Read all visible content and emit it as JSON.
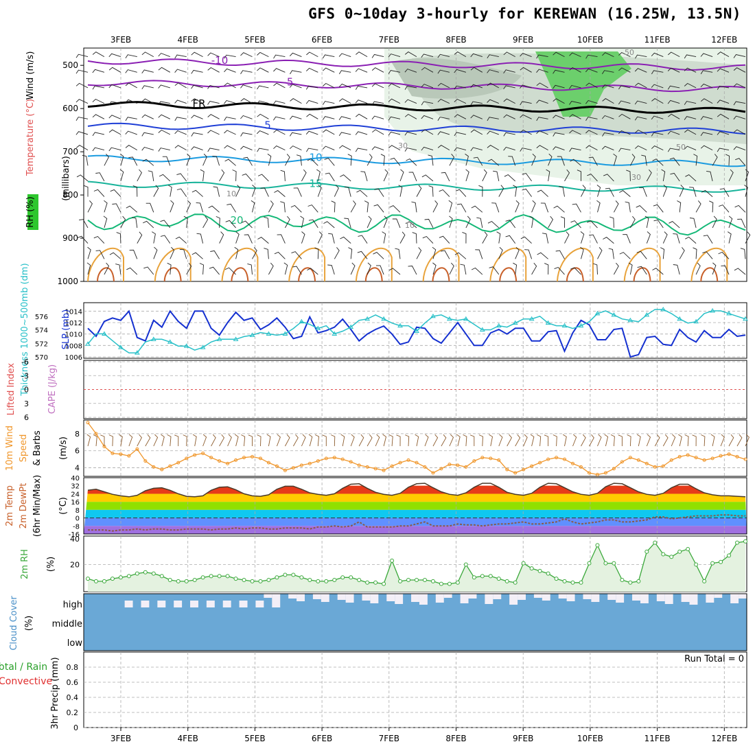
{
  "title": "GFS 0~10day 3-hourly for KEREWAN (16.25W, 13.5N)",
  "colors": {
    "purple": "#8a1fb3",
    "black": "#000000",
    "blue": "#1f3fd6",
    "sky": "#1a9be0",
    "teal": "#17b39a",
    "green": "#14b877",
    "orange": "#e8a23a",
    "darkorange": "#c8602a",
    "slp": "#1430d0",
    "thickness": "#27c0c8",
    "wind10": "#f0962a",
    "barb": "#8b5a2b",
    "rh2m": "#3aa83a",
    "cloud": "#6aa8d6",
    "cloudclear": "#f3eff7",
    "precip_grid": "#999999"
  },
  "chart_data": [
    {
      "type": "line",
      "name": "upper-air",
      "ylabel_parts": [
        "Wind (m/s)",
        "Temperature (°C)",
        "RH (%)"
      ],
      "ylabel2": "(millibars)",
      "x": [
        "3FEB",
        "4FEB",
        "5FEB",
        "6FEB",
        "7FEB",
        "8FEB",
        "9FEB",
        "10FEB",
        "11FEB",
        "12FEB"
      ],
      "yticks": [
        500,
        600,
        700,
        800,
        900,
        1000
      ],
      "ylim": [
        460,
        1000
      ],
      "isotherms": [
        {
          "label": "-10",
          "level": 490,
          "color": "purple"
        },
        {
          "label": "-5",
          "level": 540,
          "color": "purple"
        },
        {
          "label": "FR",
          "level": 590,
          "color": "black"
        },
        {
          "label": "5",
          "level": 640,
          "color": "blue"
        },
        {
          "label": "10",
          "level": 715,
          "color": "sky"
        },
        {
          "label": "15",
          "level": 775,
          "color": "teal"
        },
        {
          "label": "20",
          "level": 860,
          "color": "green"
        }
      ],
      "rh_contour_labels": [
        "50",
        "30",
        "10",
        "30",
        "50",
        "10"
      ]
    },
    {
      "type": "line",
      "name": "slp-thickness",
      "ylabel_left": "Thickness 1000~500mb (dm)",
      "ylabel_right": "SLP (mb)",
      "yticks_left": [
        570,
        572,
        574,
        576
      ],
      "yticks_right": [
        1006,
        1008,
        1010,
        1012,
        1014
      ],
      "slp": [
        1011,
        1009.6,
        1012.2,
        1012.8,
        1012.4,
        1014,
        1009.4,
        1008.8,
        1012.4,
        1011.2,
        1014,
        1012.2,
        1011,
        1014,
        1014,
        1011,
        1009.8,
        1012,
        1013.8,
        1012.4,
        1012.8,
        1010.8,
        1011.6,
        1012.8,
        1011.2,
        1009.2,
        1009.6,
        1013,
        1010.2,
        1010.6,
        1011.2,
        1012.6,
        1010.8,
        1008.8,
        1010,
        1010.8,
        1011.4,
        1010,
        1008.2,
        1008.6,
        1011.2,
        1011,
        1009.2,
        1008.4,
        1010.2,
        1012,
        1010,
        1008,
        1008,
        1010.2,
        1010.8,
        1010,
        1011,
        1011,
        1008.8,
        1008.8,
        1010.4,
        1010.6,
        1007,
        1010.2,
        1012.4,
        1011.6,
        1009,
        1009,
        1010.8,
        1011,
        1006,
        1006.4,
        1009.4,
        1009.6,
        1008.2,
        1008,
        1010.8,
        1009.4,
        1008.6,
        1010.6,
        1009.4,
        1009.4,
        1010.8,
        1009.6,
        1009.8
      ],
      "thickness": [
        571.9,
        573.4,
        573.4,
        572.4,
        571.4,
        570.6,
        570.6,
        572.2,
        572.6,
        572.6,
        572.2,
        571.6,
        571.6,
        571,
        571.4,
        572.2,
        572.6,
        572.6,
        572.6,
        573,
        573.2,
        573.6,
        573.4,
        573.2,
        573.4,
        574.2,
        575.2,
        574.8,
        574.2,
        574.6,
        573.4,
        573.8,
        574.4,
        575.4,
        575.6,
        576.2,
        575.6,
        575,
        574.6,
        574.6,
        573.8,
        575,
        576,
        576.2,
        575.6,
        575.4,
        575.6,
        574.8,
        574,
        574,
        574.6,
        574.4,
        575,
        575.6,
        575.6,
        576,
        575,
        574.6,
        574.6,
        574.2,
        574.6,
        575.2,
        576.4,
        576.8,
        576.2,
        575.6,
        575.4,
        575.2,
        576.2,
        577,
        577,
        576.4,
        575.6,
        575,
        575.2,
        576.4,
        576.8,
        576.8,
        576.4,
        576,
        575.6
      ]
    },
    {
      "type": "line",
      "name": "cape-li",
      "ylabel_left": "Lifted Index",
      "ylabel_right": "CAPE (J/kg)",
      "yticks": [
        "-6",
        "-3",
        "0",
        "3",
        "6"
      ]
    },
    {
      "type": "line",
      "name": "wind10m",
      "ylabel": "10m Wind Speed & Barbs (m/s)",
      "yticks": [
        4,
        6,
        8
      ],
      "values": [
        9.3,
        8,
        6.5,
        5.7,
        5.6,
        5.4,
        6.2,
        4.8,
        4.1,
        3.8,
        4.2,
        4.6,
        5.1,
        5.5,
        5.7,
        5.2,
        4.8,
        4.5,
        4.9,
        5.2,
        5.3,
        5.1,
        4.6,
        4.2,
        3.7,
        4,
        4.3,
        4.5,
        4.8,
        5.1,
        5.2,
        5,
        4.7,
        4.3,
        4.1,
        3.9,
        3.7,
        4.2,
        4.6,
        4.9,
        4.6,
        4.1,
        3.4,
        3.9,
        4.4,
        4.3,
        4.1,
        4.8,
        5.2,
        5.1,
        4.9,
        3.8,
        3.4,
        3.8,
        4.2,
        4.6,
        5,
        5.2,
        5,
        4.5,
        4.1,
        3.4,
        3.2,
        3.4,
        3.9,
        4.7,
        5.2,
        4.9,
        4.5,
        4.1,
        4.2,
        4.9,
        5.3,
        5.5,
        5.2,
        4.9,
        5.1,
        5.4,
        5.6,
        5.3,
        5
      ]
    },
    {
      "type": "area",
      "name": "temp2m",
      "ylabel": "2m Temp 2m DewPt (6hr Min/Max) (°C)",
      "yticks": [
        40,
        32,
        24,
        16,
        8,
        0,
        -8,
        -16
      ],
      "temp": [
        27.5,
        28.5,
        26,
        23.5,
        22,
        21,
        22.5,
        27,
        29.5,
        30,
        27.5,
        24,
        21.5,
        21,
        22,
        27.5,
        30.5,
        31,
        28,
        24,
        22,
        21.5,
        23,
        28.5,
        31.5,
        31.5,
        28.5,
        25,
        23.5,
        22.5,
        24,
        29.5,
        33.5,
        34,
        29.5,
        25.5,
        23.5,
        22.5,
        24.5,
        30.5,
        34,
        34.5,
        30,
        26,
        23.5,
        22.5,
        25,
        30.5,
        34.5,
        34.5,
        30.5,
        25.5,
        23.5,
        22.5,
        24.5,
        30.5,
        34.5,
        34,
        30,
        26,
        23.5,
        22.5,
        24.5,
        31,
        34.5,
        34,
        30,
        26,
        23.5,
        22.5,
        24.5,
        30,
        33.5,
        33.5,
        29,
        25,
        23,
        22,
        22,
        21.5,
        21
      ],
      "dewpt": [
        -12,
        -12,
        -12,
        -13,
        -12,
        -12,
        -11,
        -12,
        -11,
        -11,
        -12,
        -12,
        -11,
        -11,
        -11,
        -12,
        -11,
        -11,
        -10,
        -11,
        -10,
        -10,
        -11,
        -11,
        -10,
        -10,
        -10,
        -11,
        -9,
        -9,
        -8,
        -9,
        -8,
        -4,
        -9,
        -9,
        -9,
        -9,
        -8,
        -8,
        -6,
        -4,
        -8,
        -8,
        -8,
        -6,
        -7,
        -7,
        -8,
        -7,
        -6,
        -6,
        -5,
        -4,
        -6,
        -6,
        -5,
        -4,
        -1,
        -4,
        -6,
        -5,
        -4,
        -2,
        -2,
        -4,
        -4,
        -3,
        -2,
        1,
        1,
        -1,
        0,
        1,
        2,
        2,
        2,
        3,
        3,
        2,
        2
      ]
    },
    {
      "type": "area",
      "name": "rh2m",
      "ylabel": "2m RH (%)",
      "yticks": [
        20,
        40
      ],
      "ylim": [
        0,
        40
      ],
      "values": [
        9,
        7,
        7,
        9,
        10,
        11,
        13,
        14,
        13,
        11,
        8,
        7,
        7,
        8,
        10,
        11,
        11,
        11,
        9,
        8,
        7,
        7,
        8,
        10,
        12,
        12,
        10,
        8,
        7,
        7,
        8,
        10,
        10,
        8,
        6,
        6,
        5,
        23,
        7,
        8,
        8,
        8,
        7,
        5,
        5,
        6,
        20,
        10,
        11,
        11,
        9,
        7,
        6,
        21,
        17,
        15,
        13,
        9,
        7,
        6,
        6,
        21,
        35,
        21,
        21,
        8,
        6,
        7,
        30,
        37,
        28,
        26,
        30,
        32,
        20,
        7,
        21,
        22,
        27,
        37,
        38
      ]
    },
    {
      "type": "heatmap",
      "name": "cloud-cover",
      "ylabel": "Cloud Cover (%)",
      "rows": [
        "high",
        "middle",
        "low"
      ]
    },
    {
      "type": "bar",
      "name": "precip",
      "ylabel": "3hr Precip (mm)",
      "ylabel_side": "Total / Rain",
      "ylabel_side2": "Convective",
      "yticks": [
        "0",
        "0.2",
        "0.4",
        "0.6",
        "0.8"
      ],
      "ylim": [
        0,
        1
      ],
      "run_total": "Run Total = 0",
      "x_bottom": [
        "3FEB",
        "4FEB",
        "5FEB",
        "6FEB",
        "7FEB",
        "8FEB",
        "9FEB",
        "10FEB",
        "11FEB",
        "12FEB"
      ]
    }
  ]
}
